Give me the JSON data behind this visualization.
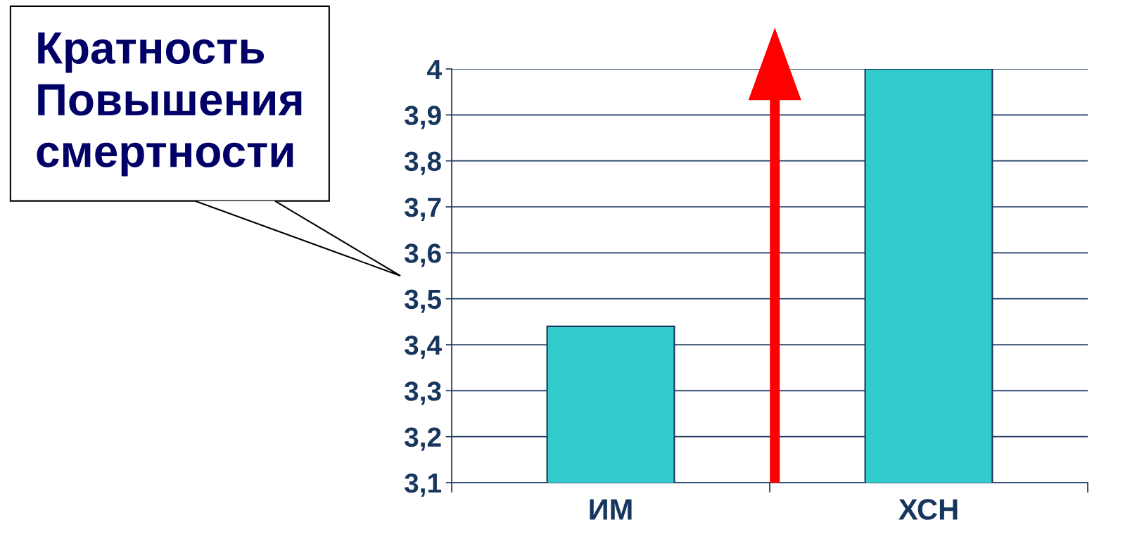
{
  "chart_data": {
    "type": "bar",
    "categories": [
      "ИМ",
      "ХСН"
    ],
    "values": [
      3.44,
      4.0
    ],
    "color": "#33cccc",
    "ylim": [
      3.1,
      4
    ],
    "yticks": [
      {
        "value": 3.1,
        "label": "3,1"
      },
      {
        "value": 3.2,
        "label": "3,2"
      },
      {
        "value": 3.3,
        "label": "3,3"
      },
      {
        "value": 3.4,
        "label": "3,4"
      },
      {
        "value": 3.5,
        "label": "3,5"
      },
      {
        "value": 3.6,
        "label": "3,6"
      },
      {
        "value": 3.7,
        "label": "3,7"
      },
      {
        "value": 3.8,
        "label": "3,8"
      },
      {
        "value": 3.9,
        "label": "3,9"
      },
      4
    ],
    "grid": "y",
    "annotations": [
      "Кратность\nПовышения\nсмертности"
    ]
  }
}
